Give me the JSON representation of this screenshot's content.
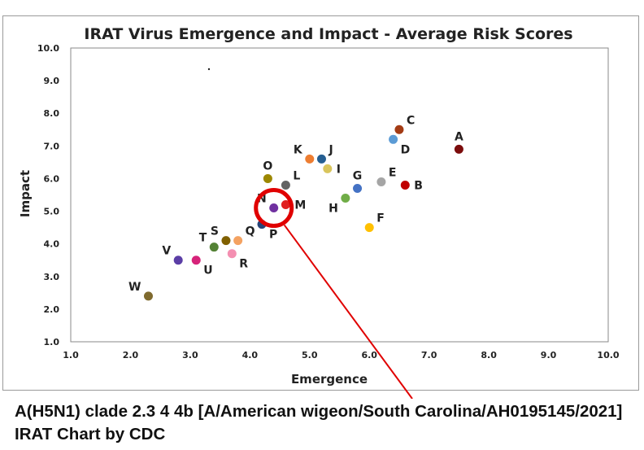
{
  "caption": {
    "line1": "A(H5N1) clade 2.3 4 4b [A/American wigeon/South Carolina/AH0195145/2021]",
    "line2": "IRAT Chart by CDC"
  },
  "chart_data": {
    "type": "scatter",
    "title": "IRAT Virus Emergence and Impact - Average Risk Scores",
    "xlabel": "Emergence",
    "ylabel": "Impact",
    "xlim": [
      1.0,
      10.0
    ],
    "ylim": [
      1.0,
      10.0
    ],
    "xticks": [
      "1.0",
      "2.0",
      "3.0",
      "4.0",
      "5.0",
      "6.0",
      "7.0",
      "8.0",
      "9.0",
      "10.0"
    ],
    "yticks": [
      "1.0",
      "2.0",
      "3.0",
      "4.0",
      "5.0",
      "6.0",
      "7.0",
      "8.0",
      "9.0",
      "10.0"
    ],
    "grid": false,
    "legend": "none",
    "points": [
      {
        "label": "A",
        "x": 7.5,
        "y": 6.9,
        "color": "#7b0c0c",
        "label_pos": "top"
      },
      {
        "label": "B",
        "x": 6.6,
        "y": 5.8,
        "color": "#c00000",
        "label_pos": "right"
      },
      {
        "label": "C",
        "x": 6.5,
        "y": 7.5,
        "color": "#a33b14",
        "label_pos": "top-right"
      },
      {
        "label": "D",
        "x": 6.4,
        "y": 7.2,
        "color": "#5b9bd5",
        "label_pos": "bottom-right"
      },
      {
        "label": "E",
        "x": 6.2,
        "y": 5.9,
        "color": "#a5a5a5",
        "label_pos": "top-right"
      },
      {
        "label": "F",
        "x": 6.0,
        "y": 4.5,
        "color": "#ffc000",
        "label_pos": "top-right"
      },
      {
        "label": "G",
        "x": 5.8,
        "y": 5.7,
        "color": "#4472c4",
        "label_pos": "top"
      },
      {
        "label": "H",
        "x": 5.6,
        "y": 5.4,
        "color": "#70ad47",
        "label_pos": "bottom-left"
      },
      {
        "label": "I",
        "x": 5.3,
        "y": 6.3,
        "color": "#d9c55c",
        "label_pos": "right"
      },
      {
        "label": "J",
        "x": 5.2,
        "y": 6.6,
        "color": "#255e91",
        "label_pos": "top-right"
      },
      {
        "label": "K",
        "x": 5.0,
        "y": 6.6,
        "color": "#ed7d31",
        "label_pos": "top-left"
      },
      {
        "label": "L",
        "x": 4.6,
        "y": 5.8,
        "color": "#636363",
        "label_pos": "top-right"
      },
      {
        "label": "M",
        "x": 4.6,
        "y": 5.2,
        "color": "#e02020",
        "label_pos": "right"
      },
      {
        "label": "N",
        "x": 4.4,
        "y": 5.1,
        "color": "#7030a0",
        "label_pos": "top-left"
      },
      {
        "label": "O",
        "x": 4.3,
        "y": 6.0,
        "color": "#9c8700",
        "label_pos": "top"
      },
      {
        "label": "P",
        "x": 4.2,
        "y": 4.6,
        "color": "#264478",
        "label_pos": "bottom-right"
      },
      {
        "label": "Q",
        "x": 3.8,
        "y": 4.1,
        "color": "#f4a261",
        "label_pos": "top-right"
      },
      {
        "label": "R",
        "x": 3.7,
        "y": 3.7,
        "color": "#f48fb1",
        "label_pos": "bottom-right"
      },
      {
        "label": "S",
        "x": 3.6,
        "y": 4.1,
        "color": "#806000",
        "label_pos": "top-left"
      },
      {
        "label": "T",
        "x": 3.4,
        "y": 3.9,
        "color": "#548235",
        "label_pos": "top-left"
      },
      {
        "label": "U",
        "x": 3.1,
        "y": 3.5,
        "color": "#d6237a",
        "label_pos": "bottom-right"
      },
      {
        "label": "V",
        "x": 2.8,
        "y": 3.5,
        "color": "#5b3ea6",
        "label_pos": "top-left"
      },
      {
        "label": "W",
        "x": 2.3,
        "y": 2.4,
        "color": "#7f6a2e",
        "label_pos": "top-left"
      }
    ],
    "highlight": {
      "target": "N",
      "color": "#e00000"
    }
  }
}
